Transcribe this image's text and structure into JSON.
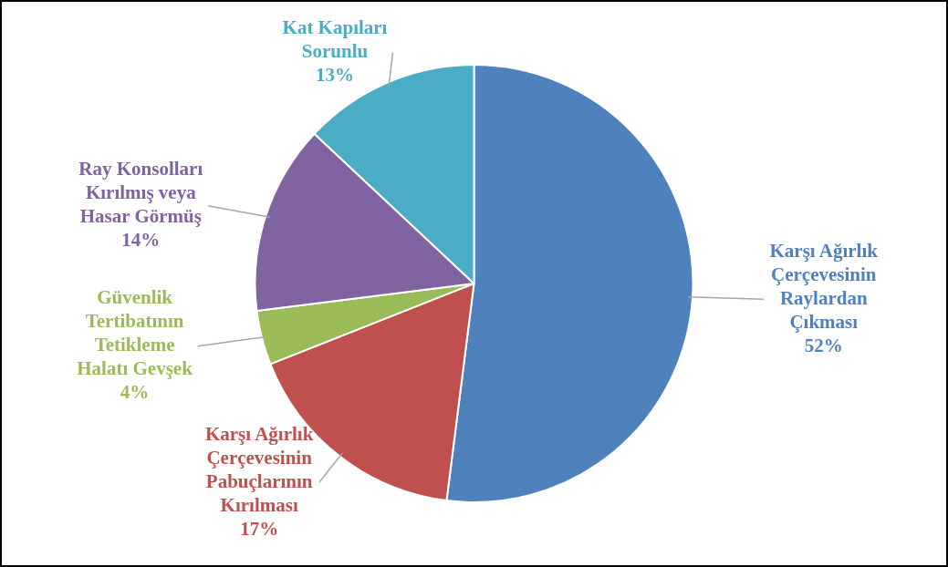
{
  "chart_data": {
    "type": "pie",
    "categories": [
      "Karşı Ağırlık\nÇerçevesinin\nRaylardan\nÇıkması",
      "Karşı Ağırlık\nÇerçevesinin\nPabuçlarının\nKırılması",
      "Güvenlik\nTertibatının\nTetikleme\nHalatı Gevşek",
      "Ray Konsolları\nKırılmış veya\nHasar Görmüş",
      "Kat Kapıları\nSorunlu"
    ],
    "values": [
      52,
      17,
      4,
      14,
      13
    ],
    "value_labels": [
      "52%",
      "17%",
      "4%",
      "14%",
      "13%"
    ],
    "colors": [
      "#4f81bd",
      "#c0504d",
      "#9bbb59",
      "#8064a2",
      "#4bacc6"
    ],
    "legend": false
  }
}
